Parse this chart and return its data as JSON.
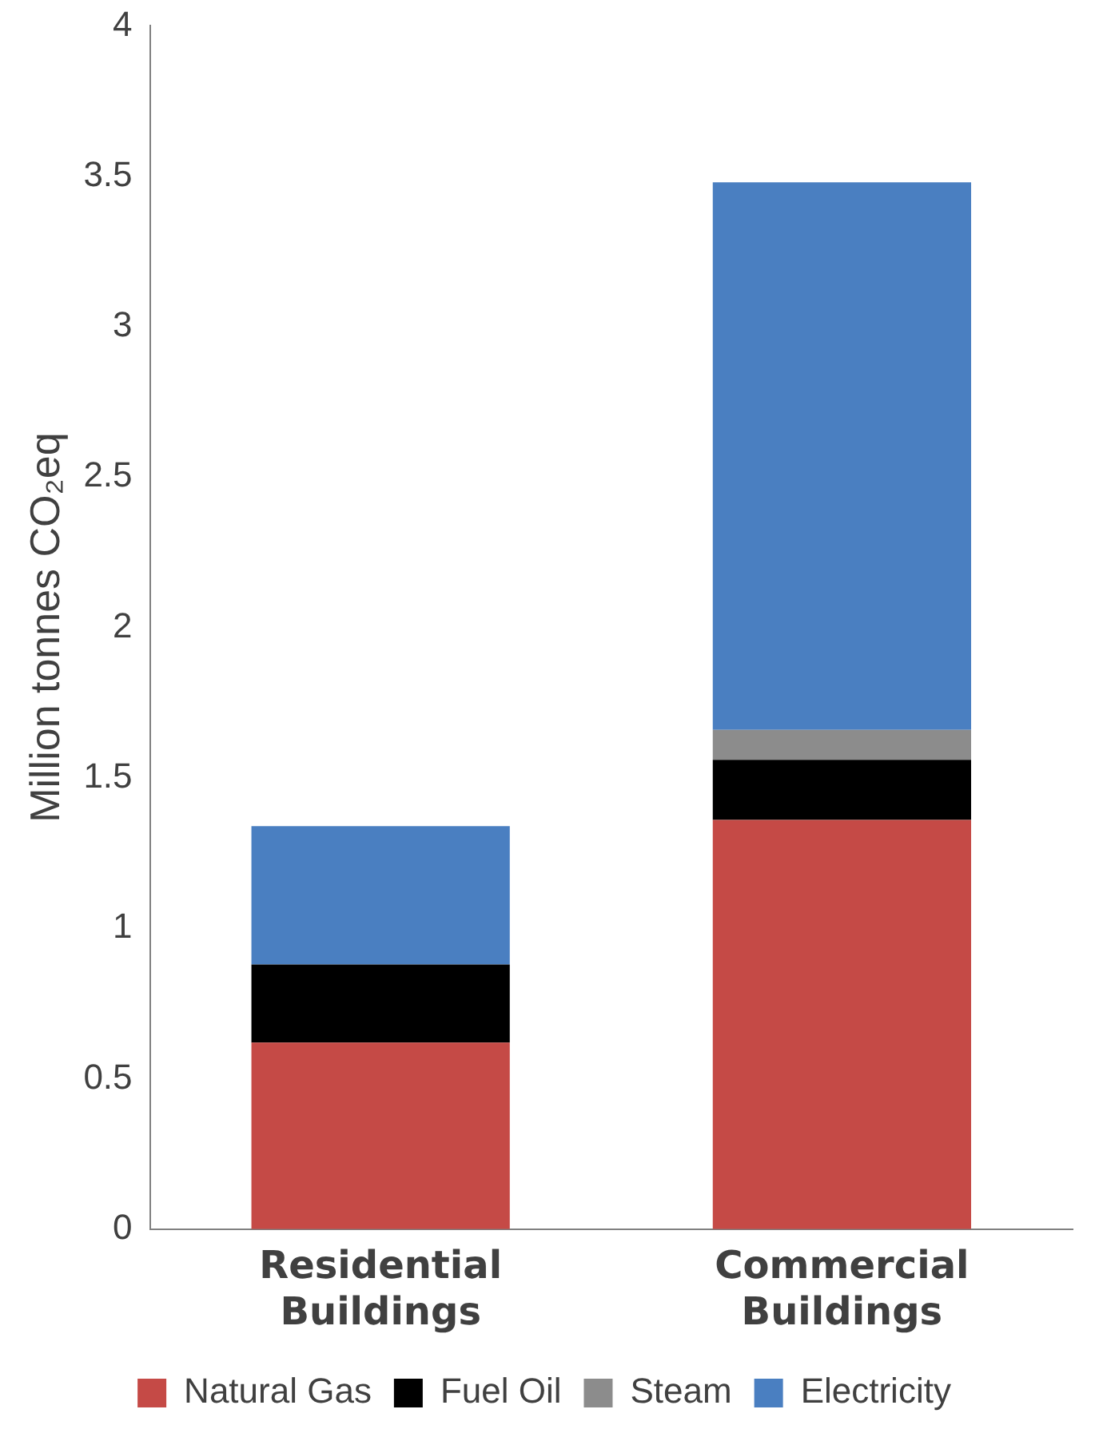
{
  "chart_data": {
    "type": "bar",
    "stacked": true,
    "ylabel": "Million tonnes CO₂eq",
    "categories": [
      "Residential Buildings",
      "Commercial Buildings"
    ],
    "series": [
      {
        "name": "Natural Gas",
        "color": "#c54a46",
        "values": [
          0.62,
          1.36
        ]
      },
      {
        "name": "Fuel Oil",
        "color": "#000000",
        "values": [
          0.26,
          0.2
        ]
      },
      {
        "name": "Steam",
        "color": "#8c8c8c",
        "values": [
          0,
          0.1
        ]
      },
      {
        "name": "Electricity",
        "color": "#4a7fc1",
        "values": [
          0.46,
          1.82
        ]
      }
    ],
    "ylim": [
      0,
      4
    ],
    "yticks": [
      0,
      0.5,
      1,
      1.5,
      2,
      2.5,
      3,
      3.5,
      4
    ],
    "grid": false,
    "legend": "bottom"
  }
}
